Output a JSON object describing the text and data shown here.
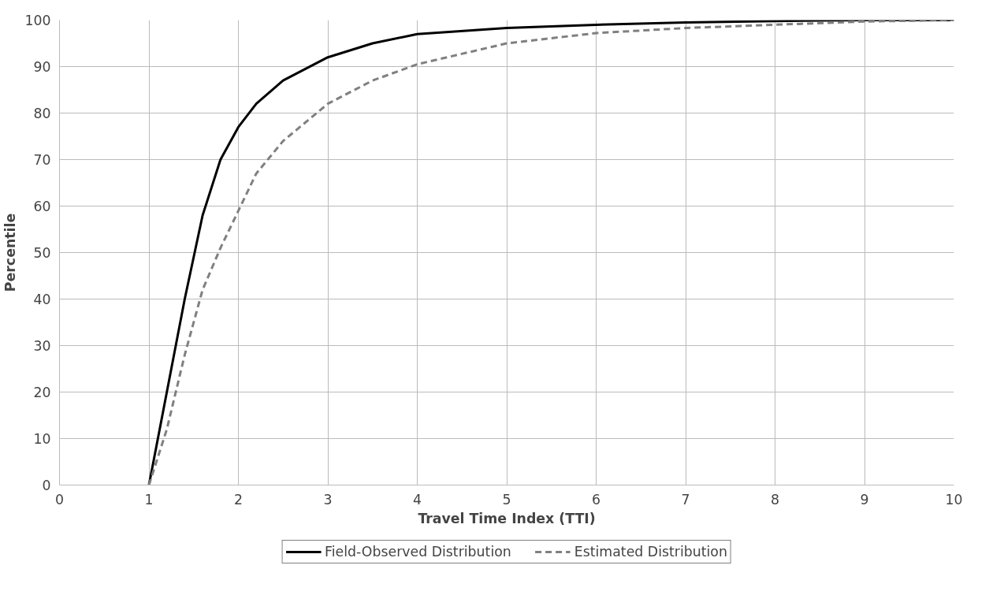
{
  "chart_data": {
    "type": "line",
    "xlabel": "Travel Time Index (TTI)",
    "ylabel": "Percentile",
    "xlim": [
      0,
      10
    ],
    "xticks": [
      0,
      1,
      2,
      3,
      4,
      5,
      6,
      7,
      8,
      9,
      10
    ],
    "ylim": [
      0,
      100
    ],
    "yticks": [
      0,
      10,
      20,
      30,
      40,
      50,
      60,
      70,
      80,
      90,
      100
    ],
    "grid": true,
    "legend": "bottom",
    "marker": "none",
    "series": [
      {
        "name": "Field-Observed Distribution",
        "color": "#000000",
        "line_style": "solid",
        "x": [
          1,
          1.2,
          1.4,
          1.6,
          1.8,
          2.0,
          2.2,
          2.5,
          3,
          3.5,
          4,
          5,
          6,
          7,
          8,
          9,
          10
        ],
        "values": [
          0,
          20,
          40,
          58,
          70,
          77,
          82,
          87,
          92,
          95,
          97,
          98.3,
          99,
          99.5,
          99.8,
          100,
          100
        ]
      },
      {
        "name": "Estimated Distribution",
        "color": "#808080",
        "line_style": "dashed",
        "x": [
          1,
          1.2,
          1.4,
          1.6,
          1.8,
          2.0,
          2.2,
          2.5,
          3,
          3.5,
          4,
          5,
          6,
          7,
          8,
          9,
          10
        ],
        "values": [
          0,
          12,
          28,
          42,
          51,
          59,
          67,
          74,
          82,
          87,
          90.5,
          95,
          97.2,
          98.3,
          99,
          99.7,
          100
        ]
      }
    ]
  }
}
